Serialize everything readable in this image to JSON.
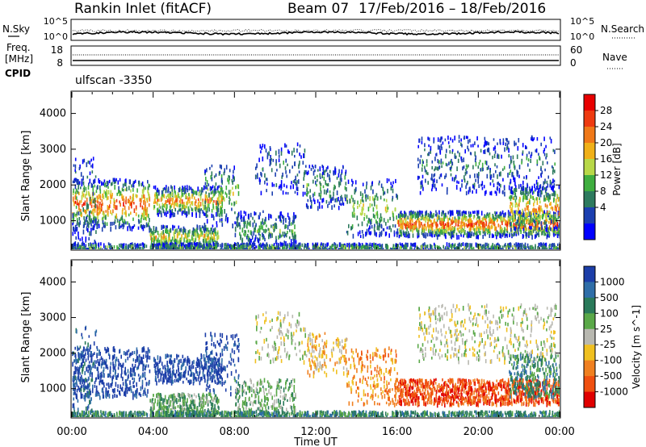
{
  "header": {
    "station": "Rankin Inlet (fitACF)",
    "beam": "Beam 07",
    "date_range": "17/Feb/2016 – 18/Feb/2016"
  },
  "noise_panel": {
    "left_label": "N.Sky",
    "right_label": "N.Search",
    "left_ticks": [
      "10^5",
      "10^0"
    ],
    "right_ticks": [
      "10^5",
      "10^0"
    ]
  },
  "freq_panel": {
    "left_label_1": "Freq.",
    "left_label_2": "[MHz]",
    "cpid_label": "CPID",
    "left_ticks": [
      "18",
      "8"
    ],
    "right_ticks": [
      "60",
      "0"
    ],
    "right_label": "Nave"
  },
  "cpid_value": "ulfscan -3350",
  "x_axis": {
    "label": "Time UT",
    "ticks": [
      "00:00",
      "04:00",
      "08:00",
      "12:00",
      "16:00",
      "20:00",
      "00:00"
    ]
  },
  "chart_data": [
    {
      "type": "heatmap",
      "title": "",
      "xlabel": "Time UT",
      "ylabel": "Slant Range [km]",
      "yticks": [
        1000,
        2000,
        3000,
        4000
      ],
      "ylim": [
        200,
        4600
      ],
      "xlim": [
        "00:00",
        "24:00"
      ],
      "colorbar": {
        "label": "Power [dB]",
        "ticks": [
          4,
          8,
          12,
          16,
          20,
          24,
          28
        ],
        "range": [
          0,
          32
        ],
        "colors": [
          "#0000ff",
          "#1b3fb0",
          "#2d7a5e",
          "#3fae3f",
          "#b8d848",
          "#f0b018",
          "#f07818",
          "#ee3a10",
          "#e80000"
        ]
      }
    },
    {
      "type": "heatmap",
      "title": "",
      "xlabel": "Time UT",
      "ylabel": "Slant Range [km]",
      "yticks": [
        1000,
        2000,
        3000,
        4000
      ],
      "ylim": [
        200,
        4600
      ],
      "xlim": [
        "00:00",
        "24:00"
      ],
      "colorbar": {
        "label": "Velocity [m s^-1]",
        "tick_labels": [
          "1000",
          "500",
          "100",
          "25",
          "-25",
          "-100",
          "-500",
          "-1000"
        ],
        "colors": [
          "#1c3ea8",
          "#2f6ea8",
          "#2a7a5a",
          "#5aa848",
          "#b8b8b0",
          "#f0c020",
          "#f08020",
          "#f05010",
          "#e00000"
        ]
      }
    }
  ]
}
